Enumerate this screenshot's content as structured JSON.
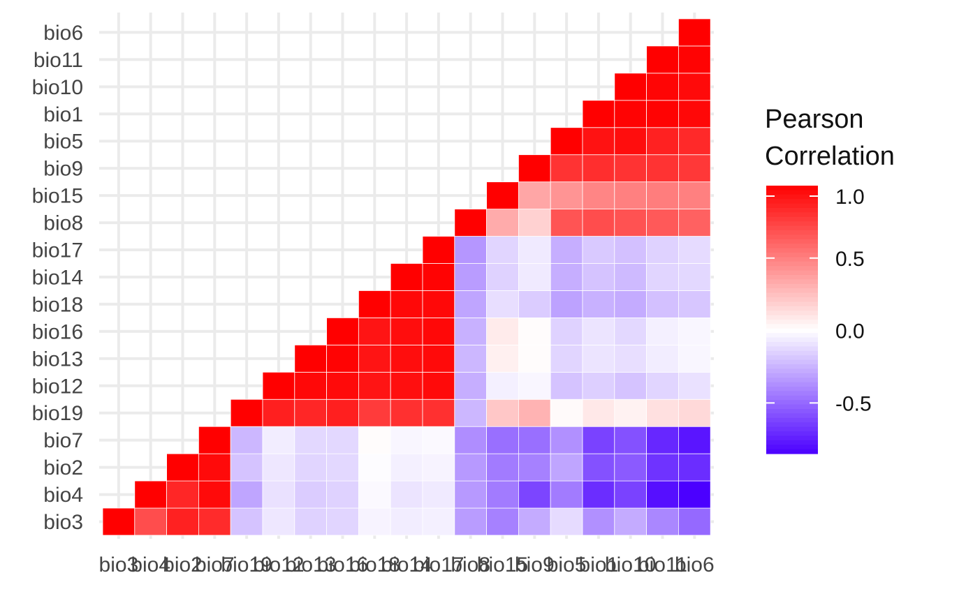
{
  "chart_data": {
    "type": "heatmap",
    "title": "",
    "xlabel": "",
    "ylabel": "",
    "x_labels": [
      "bio3",
      "bio4",
      "bio2",
      "bio7",
      "bio19",
      "bio12",
      "bio13",
      "bio16",
      "bio18",
      "bio14",
      "bio17",
      "bio8",
      "bio15",
      "bio9",
      "bio5",
      "bio1",
      "bio10",
      "bio11",
      "bio6"
    ],
    "y_labels_bottom_to_top": [
      "bio3",
      "bio4",
      "bio2",
      "bio7",
      "bio19",
      "bio12",
      "bio13",
      "bio16",
      "bio18",
      "bio14",
      "bio17",
      "bio8",
      "bio15",
      "bio9",
      "bio5",
      "bio1",
      "bio10",
      "bio11",
      "bio6"
    ],
    "grid": true,
    "values": [
      [
        1.0,
        null,
        null,
        null,
        null,
        null,
        null,
        null,
        null,
        null,
        null,
        null,
        null,
        null,
        null,
        null,
        null,
        null,
        null
      ],
      [
        0.7,
        1.0,
        null,
        null,
        null,
        null,
        null,
        null,
        null,
        null,
        null,
        null,
        null,
        null,
        null,
        null,
        null,
        null,
        null
      ],
      [
        0.87,
        0.85,
        1.0,
        null,
        null,
        null,
        null,
        null,
        null,
        null,
        null,
        null,
        null,
        null,
        null,
        null,
        null,
        null,
        null
      ],
      [
        0.83,
        0.96,
        0.96,
        1.0,
        null,
        null,
        null,
        null,
        null,
        null,
        null,
        null,
        null,
        null,
        null,
        null,
        null,
        null,
        null
      ],
      [
        -0.2,
        -0.3,
        -0.2,
        -0.24,
        1.0,
        null,
        null,
        null,
        null,
        null,
        null,
        null,
        null,
        null,
        null,
        null,
        null,
        null,
        null
      ],
      [
        -0.08,
        -0.1,
        -0.08,
        -0.06,
        0.88,
        1.0,
        null,
        null,
        null,
        null,
        null,
        null,
        null,
        null,
        null,
        null,
        null,
        null,
        null
      ],
      [
        -0.15,
        -0.17,
        -0.14,
        -0.13,
        0.85,
        0.97,
        1.0,
        null,
        null,
        null,
        null,
        null,
        null,
        null,
        null,
        null,
        null,
        null,
        null
      ],
      [
        -0.14,
        -0.15,
        -0.13,
        -0.13,
        0.88,
        0.96,
        0.99,
        1.0,
        null,
        null,
        null,
        null,
        null,
        null,
        null,
        null,
        null,
        null,
        null
      ],
      [
        -0.04,
        -0.02,
        -0.01,
        0.01,
        0.77,
        0.92,
        0.92,
        0.92,
        1.0,
        null,
        null,
        null,
        null,
        null,
        null,
        null,
        null,
        null,
        null
      ],
      [
        -0.06,
        -0.09,
        -0.05,
        -0.03,
        0.81,
        0.94,
        0.95,
        0.95,
        0.97,
        1.0,
        null,
        null,
        null,
        null,
        null,
        null,
        null,
        null,
        null
      ],
      [
        -0.05,
        -0.07,
        -0.04,
        -0.02,
        0.81,
        0.96,
        0.96,
        0.97,
        0.97,
        0.99,
        1.0,
        null,
        null,
        null,
        null,
        null,
        null,
        null,
        null
      ],
      [
        -0.33,
        -0.34,
        -0.34,
        -0.38,
        -0.24,
        -0.27,
        -0.24,
        -0.26,
        -0.3,
        -0.33,
        -0.35,
        1.0,
        null,
        null,
        null,
        null,
        null,
        null,
        null
      ],
      [
        -0.42,
        -0.44,
        -0.44,
        -0.48,
        0.22,
        -0.05,
        0.06,
        0.08,
        -0.11,
        -0.15,
        -0.14,
        0.33,
        1.0,
        null,
        null,
        null,
        null,
        null,
        null
      ],
      [
        -0.28,
        -0.62,
        -0.42,
        -0.48,
        0.3,
        -0.03,
        0.01,
        0.01,
        -0.17,
        -0.07,
        -0.07,
        0.18,
        0.35,
        1.0,
        null,
        null,
        null,
        null,
        null
      ],
      [
        -0.12,
        -0.44,
        -0.3,
        -0.37,
        0.02,
        -0.2,
        -0.14,
        -0.15,
        -0.31,
        -0.27,
        -0.27,
        0.67,
        0.42,
        0.8,
        1.0,
        null,
        null,
        null,
        null
      ],
      [
        -0.37,
        -0.7,
        -0.58,
        -0.63,
        0.09,
        -0.16,
        -0.09,
        -0.09,
        -0.26,
        -0.2,
        -0.18,
        0.7,
        0.48,
        0.82,
        0.93,
        1.0,
        null,
        null,
        null
      ],
      [
        -0.28,
        -0.63,
        -0.55,
        -0.58,
        0.05,
        -0.2,
        -0.11,
        -0.13,
        -0.28,
        -0.23,
        -0.21,
        0.68,
        0.5,
        0.8,
        0.95,
        0.99,
        1.0,
        null,
        null
      ],
      [
        -0.4,
        -0.8,
        -0.68,
        -0.72,
        0.12,
        -0.14,
        -0.06,
        -0.05,
        -0.21,
        -0.14,
        -0.15,
        0.65,
        0.51,
        0.8,
        0.87,
        0.99,
        0.98,
        1.0,
        null
      ],
      [
        -0.5,
        -0.85,
        -0.7,
        -0.78,
        0.15,
        -0.1,
        -0.03,
        -0.03,
        -0.19,
        -0.13,
        -0.12,
        0.62,
        0.5,
        0.78,
        0.84,
        0.97,
        0.96,
        0.99,
        1.0
      ]
    ],
    "values_note_rows": "row i corresponds to x_labels[i] column; values[i][j] with j<=i is the cell at column i, row j (bottom-to-top)",
    "color_scale": {
      "low": "#4B00FF",
      "mid": "#FFFFFF",
      "high": "#FF0000",
      "midpoint": 0.0,
      "limits": [
        -0.85,
        1.0
      ]
    },
    "legend": {
      "title_line1": "Pearson",
      "title_line2": "Correlation",
      "ticks": [
        "1.0",
        "0.5",
        "0.0",
        "-0.5"
      ],
      "tick_values": [
        1.0,
        0.5,
        0.0,
        -0.5
      ],
      "placement": "right"
    }
  }
}
